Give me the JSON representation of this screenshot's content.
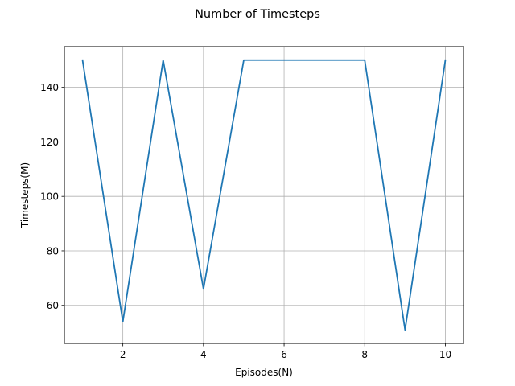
{
  "chart_data": {
    "type": "line",
    "title": "Number of Timesteps",
    "xlabel": "Episodes(N)",
    "ylabel": "Timesteps(M)",
    "x": [
      1,
      2,
      3,
      4,
      5,
      6,
      7,
      8,
      9,
      10
    ],
    "series": [
      {
        "values": [
          150,
          54,
          150,
          66,
          150,
          150,
          150,
          150,
          51,
          150
        ],
        "color": "#1f77b4"
      }
    ],
    "xlim": [
      0.55,
      10.45
    ],
    "ylim": [
      46.05,
      154.95
    ],
    "xticks": [
      2,
      4,
      6,
      8,
      10
    ],
    "yticks": [
      60,
      80,
      100,
      120,
      140
    ],
    "grid": true
  }
}
